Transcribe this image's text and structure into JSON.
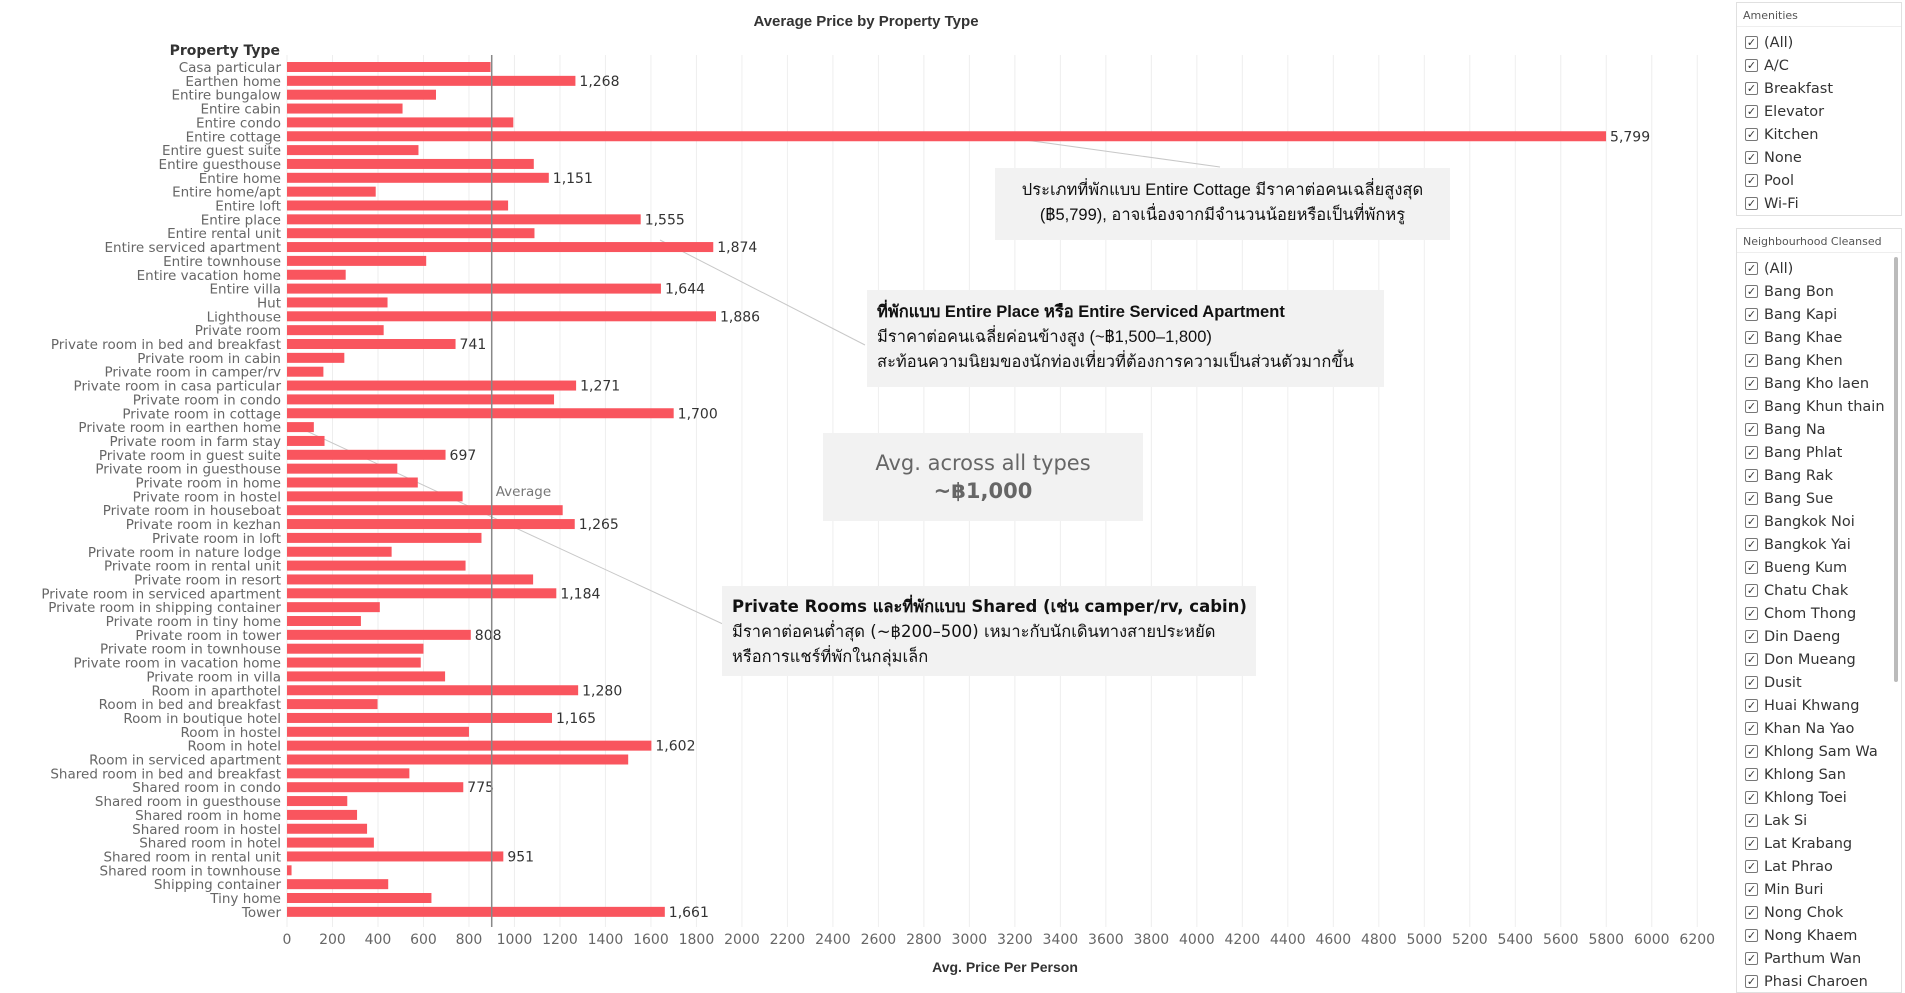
{
  "chart_data": {
    "type": "bar",
    "title": "Average Price by Property Type",
    "row_header": "Property Type",
    "xlabel": "Avg. Price Per Person",
    "xlim": [
      0,
      6300
    ],
    "xticks": [
      0,
      200,
      400,
      600,
      800,
      1000,
      1200,
      1400,
      1600,
      1800,
      2000,
      2200,
      2400,
      2600,
      2800,
      3000,
      3200,
      3400,
      3600,
      3800,
      4000,
      4200,
      4400,
      4600,
      4800,
      5000,
      5200,
      5400,
      5600,
      5800,
      6000,
      6200
    ],
    "reference_line": {
      "label": "Average",
      "value": 900
    },
    "bar_color": "#f9555e",
    "grid": true,
    "categories": [
      "Casa particular",
      "Earthen home",
      "Entire bungalow",
      "Entire cabin",
      "Entire condo",
      "Entire cottage",
      "Entire guest suite",
      "Entire guesthouse",
      "Entire home",
      "Entire home/apt",
      "Entire loft",
      "Entire place",
      "Entire rental unit",
      "Entire serviced apartment",
      "Entire townhouse",
      "Entire vacation home",
      "Entire villa",
      "Hut",
      "Lighthouse",
      "Private room",
      "Private room in bed and breakfast",
      "Private room in cabin",
      "Private room in camper/rv",
      "Private room in casa particular",
      "Private room in condo",
      "Private room in cottage",
      "Private room in earthen home",
      "Private room in farm stay",
      "Private room in guest suite",
      "Private room in guesthouse",
      "Private room in home",
      "Private room in hostel",
      "Private room in houseboat",
      "Private room in kezhan",
      "Private room in loft",
      "Private room in nature lodge",
      "Private room in rental unit",
      "Private room in resort",
      "Private room in serviced apartment",
      "Private room in shipping container",
      "Private room in tiny home",
      "Private room in tower",
      "Private room in townhouse",
      "Private room in vacation home",
      "Private room in villa",
      "Room in aparthotel",
      "Room in bed and breakfast",
      "Room in boutique hotel",
      "Room in hostel",
      "Room in hotel",
      "Room in serviced apartment",
      "Shared room in bed and breakfast",
      "Shared room in condo",
      "Shared room in guesthouse",
      "Shared room in home",
      "Shared room in hostel",
      "Shared room in hotel",
      "Shared room in rental unit",
      "Shared room in townhouse",
      "Shipping container",
      "Tiny home",
      "Tower"
    ],
    "values": [
      895,
      1268,
      655,
      508,
      995,
      5799,
      578,
      1085,
      1151,
      390,
      972,
      1555,
      1088,
      1874,
      612,
      258,
      1644,
      442,
      1886,
      425,
      741,
      252,
      160,
      1271,
      1174,
      1700,
      118,
      165,
      697,
      485,
      575,
      772,
      1212,
      1265,
      855,
      460,
      785,
      1082,
      1184,
      408,
      325,
      808,
      600,
      588,
      695,
      1280,
      398,
      1165,
      800,
      1602,
      1500,
      538,
      775,
      265,
      308,
      352,
      382,
      951,
      20,
      445,
      635,
      1661
    ],
    "data_labels": [
      {
        "index": 1,
        "text": "1,268"
      },
      {
        "index": 5,
        "text": "5,799"
      },
      {
        "index": 8,
        "text": "1,151"
      },
      {
        "index": 11,
        "text": "1,555"
      },
      {
        "index": 13,
        "text": "1,874"
      },
      {
        "index": 16,
        "text": "1,644"
      },
      {
        "index": 18,
        "text": "1,886"
      },
      {
        "index": 20,
        "text": "741"
      },
      {
        "index": 23,
        "text": "1,271"
      },
      {
        "index": 25,
        "text": "1,700"
      },
      {
        "index": 28,
        "text": "697"
      },
      {
        "index": 33,
        "text": "1,265"
      },
      {
        "index": 38,
        "text": "1,184"
      },
      {
        "index": 41,
        "text": "808"
      },
      {
        "index": 45,
        "text": "1,280"
      },
      {
        "index": 47,
        "text": "1,165"
      },
      {
        "index": 49,
        "text": "1,602"
      },
      {
        "index": 52,
        "text": "775"
      },
      {
        "index": 57,
        "text": "951"
      },
      {
        "index": 61,
        "text": "1,661"
      }
    ]
  },
  "annotations": {
    "cottage": {
      "line1": "ประเภทที่พักแบบ Entire Cottage มีราคาต่อคนเฉลี่ยสูงสุด",
      "line2": "(฿5,799), อาจเนื่องจากมีจำนวนน้อยหรือเป็นที่พักหรู"
    },
    "entire_place": {
      "line1": "ที่พักแบบ Entire Place หรือ Entire Serviced Apartment",
      "line2": "มีราคาต่อคนเฉลี่ยค่อนข้างสูง (~฿1,500–1,800)",
      "line3": "สะท้อนความนิยมของนักท่องเที่ยวที่ต้องการความเป็นส่วนตัวมากขึ้น"
    },
    "average": {
      "line1": "Avg. across all types",
      "line2": "~฿1,000"
    },
    "private": {
      "line1": "Private Rooms และที่พักแบบ Shared (เช่น camper/rv, cabin)",
      "line2": "มีราคาต่อคนต่ำสุด (~฿200–500) เหมาะกับนักเดินทางสายประหยัด",
      "line3": "หรือการแชร์ที่พักในกลุ่มเล็ก"
    }
  },
  "filters": {
    "amenities": {
      "title": "Amenities",
      "items": [
        "(All)",
        "A/C",
        "Breakfast",
        "Elevator",
        "Kitchen",
        "None",
        "Pool",
        "Wi-Fi"
      ]
    },
    "neighbourhood": {
      "title": "Neighbourhood Cleansed",
      "items": [
        "(All)",
        "Bang Bon",
        "Bang Kapi",
        "Bang Khae",
        "Bang Khen",
        "Bang Kho laen",
        "Bang Khun thain",
        "Bang Na",
        "Bang Phlat",
        "Bang Rak",
        "Bang Sue",
        "Bangkok Noi",
        "Bangkok Yai",
        "Bueng Kum",
        "Chatu Chak",
        "Chom Thong",
        "Din Daeng",
        "Don Mueang",
        "Dusit",
        "Huai Khwang",
        "Khan Na Yao",
        "Khlong Sam Wa",
        "Khlong San",
        "Khlong Toei",
        "Lak Si",
        "Lat Krabang",
        "Lat Phrao",
        "Min Buri",
        "Nong Chok",
        "Nong Khaem",
        "Parthum Wan",
        "Phasi Charoen"
      ]
    }
  }
}
